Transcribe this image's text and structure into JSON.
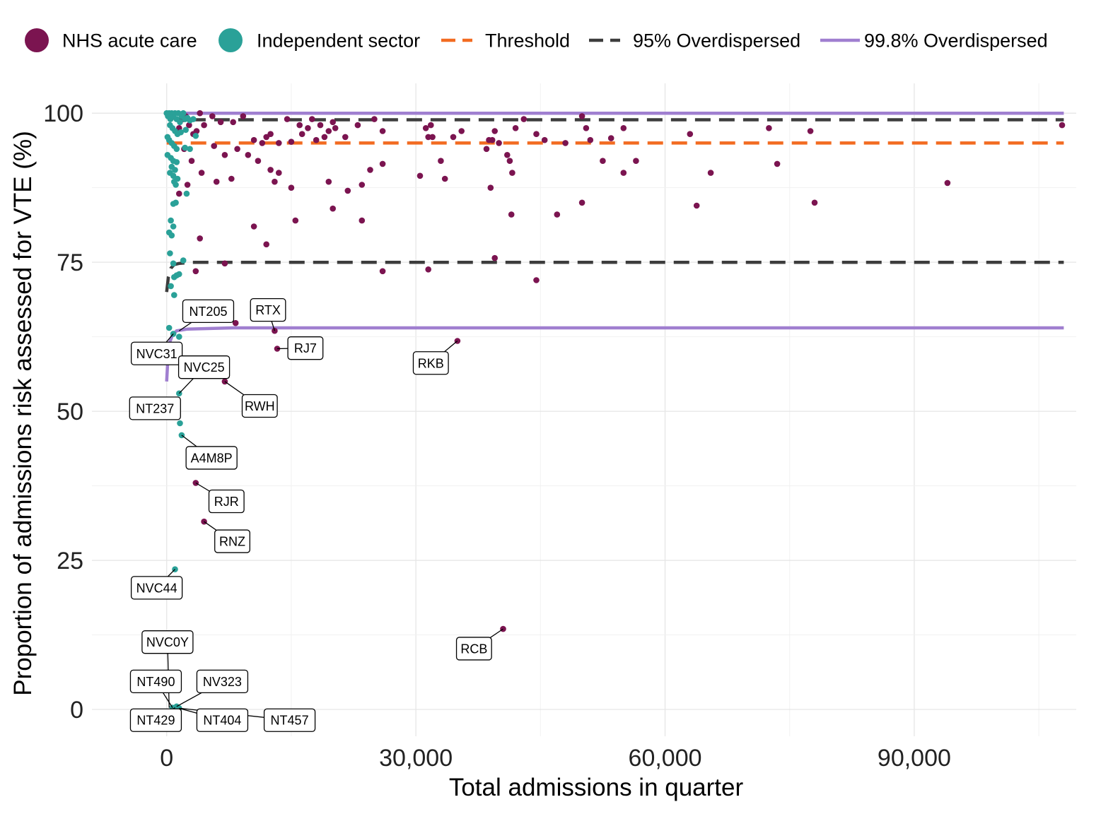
{
  "chart_data": {
    "type": "scatter",
    "xlabel": "Total admissions in quarter",
    "ylabel": "Proportion of admissions risk assessed for VTE (%)",
    "xlim": [
      -9000,
      109500
    ],
    "ylim": [
      -4.5,
      105
    ],
    "x_ticks": [
      0,
      30000,
      60000,
      90000
    ],
    "x_tick_labels": [
      "0",
      "30,000",
      "60,000",
      "90,000"
    ],
    "y_ticks": [
      0,
      25,
      50,
      75,
      100
    ],
    "y_tick_labels": [
      "0",
      "25",
      "50",
      "75",
      "100"
    ],
    "grid": true,
    "legend_position": "top",
    "colors": {
      "nhs": "#7b1450",
      "independent": "#2aa198",
      "threshold": "#f26b21",
      "overdispersed95": "#3d3d3d",
      "overdispersed998": "#a07fd0"
    },
    "legend": [
      {
        "key": "nhs",
        "label": "NHS acute care",
        "kind": "point"
      },
      {
        "key": "independent",
        "label": "Independent sector",
        "kind": "point"
      },
      {
        "key": "threshold",
        "label": "Threshold",
        "kind": "dash"
      },
      {
        "key": "overdispersed95",
        "label": "95% Overdispersed",
        "kind": "dash"
      },
      {
        "key": "overdispersed998",
        "label": "99.8% Overdispersed",
        "kind": "solid"
      }
    ],
    "threshold": 95,
    "limits": {
      "overdispersed95_upper": {
        "x": [
          0,
          700,
          1500,
          3000,
          108000
        ],
        "y": [
          99.6,
          99.2,
          99.0,
          98.9,
          98.9
        ]
      },
      "overdispersed95_lower": {
        "x": [
          0,
          200,
          500,
          900,
          1500,
          3000,
          108000
        ],
        "y": [
          70,
          72.5,
          74,
          74.6,
          74.8,
          75,
          75
        ]
      },
      "overdispersed998_upper": {
        "x": [
          0,
          1500,
          108000
        ],
        "y": [
          100,
          100,
          100
        ]
      },
      "overdispersed998_lower": {
        "x": [
          0,
          150,
          350,
          700,
          1200,
          2500,
          8000,
          108000
        ],
        "y": [
          55,
          59,
          61.5,
          62.8,
          63.5,
          63.8,
          64,
          64
        ]
      }
    },
    "series": [
      {
        "name": "NHS acute care",
        "key": "nhs",
        "points": [
          [
            1500,
            97.5
          ],
          [
            2000,
            99
          ],
          [
            2300,
            99.5
          ],
          [
            2700,
            98
          ],
          [
            3200,
            96.5
          ],
          [
            3600,
            97
          ],
          [
            4000,
            100
          ],
          [
            4500,
            98
          ],
          [
            5500,
            99.5
          ],
          [
            6500,
            98.5
          ],
          [
            8000,
            98.5
          ],
          [
            9200,
            99.5
          ],
          [
            10500,
            95.5
          ],
          [
            11500,
            95
          ],
          [
            12000,
            96
          ],
          [
            12500,
            96.5
          ],
          [
            13500,
            95
          ],
          [
            14500,
            99
          ],
          [
            15000,
            95.2
          ],
          [
            16000,
            98
          ],
          [
            16300,
            96.5
          ],
          [
            17000,
            97.5
          ],
          [
            17500,
            99
          ],
          [
            18000,
            95.5
          ],
          [
            18500,
            98
          ],
          [
            19000,
            96
          ],
          [
            19500,
            97
          ],
          [
            20000,
            98.5
          ],
          [
            20300,
            97.5
          ],
          [
            21500,
            96
          ],
          [
            23000,
            98
          ],
          [
            25000,
            99
          ],
          [
            26000,
            97
          ],
          [
            2100,
            94
          ],
          [
            3000,
            92
          ],
          [
            4200,
            90
          ],
          [
            5700,
            94.5
          ],
          [
            7000,
            93
          ],
          [
            8500,
            94
          ],
          [
            9800,
            93
          ],
          [
            11000,
            92
          ],
          [
            12500,
            90.5
          ],
          [
            13500,
            90
          ],
          [
            15000,
            87.5
          ],
          [
            1500,
            86.5
          ],
          [
            2500,
            88
          ],
          [
            6000,
            88.5
          ],
          [
            7800,
            89
          ],
          [
            13000,
            88.5
          ],
          [
            19500,
            88.5
          ],
          [
            21800,
            87
          ],
          [
            23500,
            88
          ],
          [
            24500,
            90.5
          ],
          [
            26000,
            91.5
          ],
          [
            30500,
            89.5
          ],
          [
            31200,
            97.5
          ],
          [
            31500,
            96
          ],
          [
            31800,
            98
          ],
          [
            32000,
            96
          ],
          [
            33000,
            92
          ],
          [
            33500,
            89
          ],
          [
            34500,
            96
          ],
          [
            35500,
            97
          ],
          [
            38500,
            94
          ],
          [
            38800,
            95.5
          ],
          [
            39200,
            95.5
          ],
          [
            39500,
            97
          ],
          [
            40000,
            95
          ],
          [
            41000,
            93
          ],
          [
            41300,
            92
          ],
          [
            41600,
            90
          ],
          [
            42000,
            97.5
          ],
          [
            43000,
            99
          ],
          [
            44500,
            96.5
          ],
          [
            45500,
            95.5
          ],
          [
            47000,
            83
          ],
          [
            48000,
            95
          ],
          [
            50000,
            99.5
          ],
          [
            50500,
            97.5
          ],
          [
            51000,
            95.5
          ],
          [
            52500,
            92
          ],
          [
            53500,
            95.8
          ],
          [
            55000,
            97.5
          ],
          [
            56500,
            92
          ],
          [
            63000,
            96.5
          ],
          [
            63800,
            84.5
          ],
          [
            65500,
            90
          ],
          [
            72500,
            97.5
          ],
          [
            73500,
            91.5
          ],
          [
            77500,
            97
          ],
          [
            78000,
            85
          ],
          [
            94000,
            88.3
          ],
          [
            107800,
            98
          ],
          [
            4000,
            79
          ],
          [
            10500,
            81
          ],
          [
            12000,
            78
          ],
          [
            15500,
            82
          ],
          [
            20000,
            84
          ],
          [
            23500,
            82
          ],
          [
            39000,
            87.5
          ],
          [
            41500,
            83
          ],
          [
            50000,
            85
          ],
          [
            55000,
            90
          ],
          [
            3500,
            73.5
          ],
          [
            7000,
            74.8
          ],
          [
            26000,
            73.5
          ],
          [
            31500,
            73.8
          ],
          [
            39500,
            75.7
          ],
          [
            44500,
            72
          ],
          [
            8300,
            64.8
          ],
          [
            13000,
            63.5
          ],
          [
            13300,
            60.5
          ],
          [
            35000,
            61.8
          ],
          [
            7000,
            55
          ],
          [
            3500,
            38
          ],
          [
            4500,
            31.5
          ],
          [
            40500,
            13.5
          ]
        ]
      },
      {
        "name": "Independent sector",
        "key": "independent",
        "points": [
          [
            0,
            100
          ],
          [
            150,
            99.5
          ],
          [
            300,
            100
          ],
          [
            450,
            99
          ],
          [
            600,
            100
          ],
          [
            800,
            99.5
          ],
          [
            1000,
            100
          ],
          [
            1200,
            99
          ],
          [
            1400,
            100
          ],
          [
            1600,
            98.5
          ],
          [
            1800,
            99.5
          ],
          [
            2000,
            100
          ],
          [
            2200,
            99
          ],
          [
            2500,
            99.2
          ],
          [
            2800,
            98.8
          ],
          [
            3200,
            99
          ],
          [
            400,
            98
          ],
          [
            700,
            97.5
          ],
          [
            1000,
            97
          ],
          [
            1300,
            96.5
          ],
          [
            1700,
            96.8
          ],
          [
            2300,
            97.2
          ],
          [
            3500,
            96.2
          ],
          [
            100,
            96
          ],
          [
            300,
            95.5
          ],
          [
            600,
            95
          ],
          [
            900,
            94.5
          ],
          [
            1200,
            94
          ],
          [
            2200,
            94.2
          ],
          [
            2800,
            94
          ],
          [
            100,
            93
          ],
          [
            500,
            92.5
          ],
          [
            800,
            92
          ],
          [
            1200,
            91.8
          ],
          [
            600,
            91
          ],
          [
            1000,
            90.5
          ],
          [
            400,
            90
          ],
          [
            800,
            89.5
          ],
          [
            1300,
            89
          ],
          [
            900,
            88.5
          ],
          [
            1100,
            88
          ],
          [
            2400,
            86.5
          ],
          [
            800,
            84.8
          ],
          [
            1100,
            85
          ],
          [
            500,
            82
          ],
          [
            800,
            81
          ],
          [
            300,
            80
          ],
          [
            600,
            79.5
          ],
          [
            400,
            76.5
          ],
          [
            800,
            74.8
          ],
          [
            2000,
            75.3
          ],
          [
            900,
            72.5
          ],
          [
            1200,
            72.8
          ],
          [
            1500,
            73
          ],
          [
            500,
            71
          ],
          [
            900,
            69.5
          ],
          [
            300,
            64
          ],
          [
            800,
            63
          ],
          [
            1500,
            62.5
          ],
          [
            1000,
            60
          ],
          [
            1500,
            53
          ],
          [
            1600,
            48
          ],
          [
            1800,
            46
          ],
          [
            1000,
            23.5
          ],
          [
            700,
            0.3
          ],
          [
            1200,
            0.5
          ],
          [
            1500,
            0.2
          ]
        ]
      }
    ],
    "labels": [
      {
        "text": "NT205",
        "x": 1500,
        "y": 63.5,
        "lx": 5000,
        "ly": 66.8
      },
      {
        "text": "RTX",
        "x": 13000,
        "y": 63.5,
        "lx": 12200,
        "ly": 67
      },
      {
        "text": "RJ7",
        "x": 13300,
        "y": 60.5,
        "lx": 16700,
        "ly": 60.6
      },
      {
        "text": "RKB",
        "x": 35000,
        "y": 61.8,
        "lx": 31800,
        "ly": 58.1
      },
      {
        "text": "NVC31",
        "x": 800,
        "y": 63,
        "lx": -1200,
        "ly": 59.7
      },
      {
        "text": "NVC25",
        "x": 1500,
        "y": 53,
        "lx": 4500,
        "ly": 57.4
      },
      {
        "text": "RWH",
        "x": 7000,
        "y": 55,
        "lx": 11200,
        "ly": 50.9
      },
      {
        "text": "NT237",
        "x": 1000,
        "y": 51,
        "lx": -1400,
        "ly": 50.5
      },
      {
        "text": "A4M8P",
        "x": 1800,
        "y": 46,
        "lx": 5400,
        "ly": 42.2
      },
      {
        "text": "RJR",
        "x": 3500,
        "y": 38,
        "lx": 7200,
        "ly": 34.9
      },
      {
        "text": "RNZ",
        "x": 4500,
        "y": 31.5,
        "lx": 7900,
        "ly": 28.2
      },
      {
        "text": "NVC44",
        "x": 1000,
        "y": 23.5,
        "lx": -1200,
        "ly": 20.4
      },
      {
        "text": "RCB",
        "x": 40500,
        "y": 13.5,
        "lx": 37000,
        "ly": 10.2
      },
      {
        "text": "NVC0Y",
        "x": 300,
        "y": 0.3,
        "lx": 100,
        "ly": 11.3
      },
      {
        "text": "NT490",
        "x": 700,
        "y": 0.3,
        "lx": -1300,
        "ly": 4.7
      },
      {
        "text": "NV323",
        "x": 1200,
        "y": 0.5,
        "lx": 6700,
        "ly": 4.7
      },
      {
        "text": "NT429",
        "x": 1000,
        "y": 0.3,
        "lx": -1300,
        "ly": -1.8
      },
      {
        "text": "NT404",
        "x": 1500,
        "y": 0.2,
        "lx": 6700,
        "ly": -1.8
      },
      {
        "text": "NT457",
        "x": 1600,
        "y": 0.2,
        "lx": 14800,
        "ly": -1.8
      }
    ]
  }
}
